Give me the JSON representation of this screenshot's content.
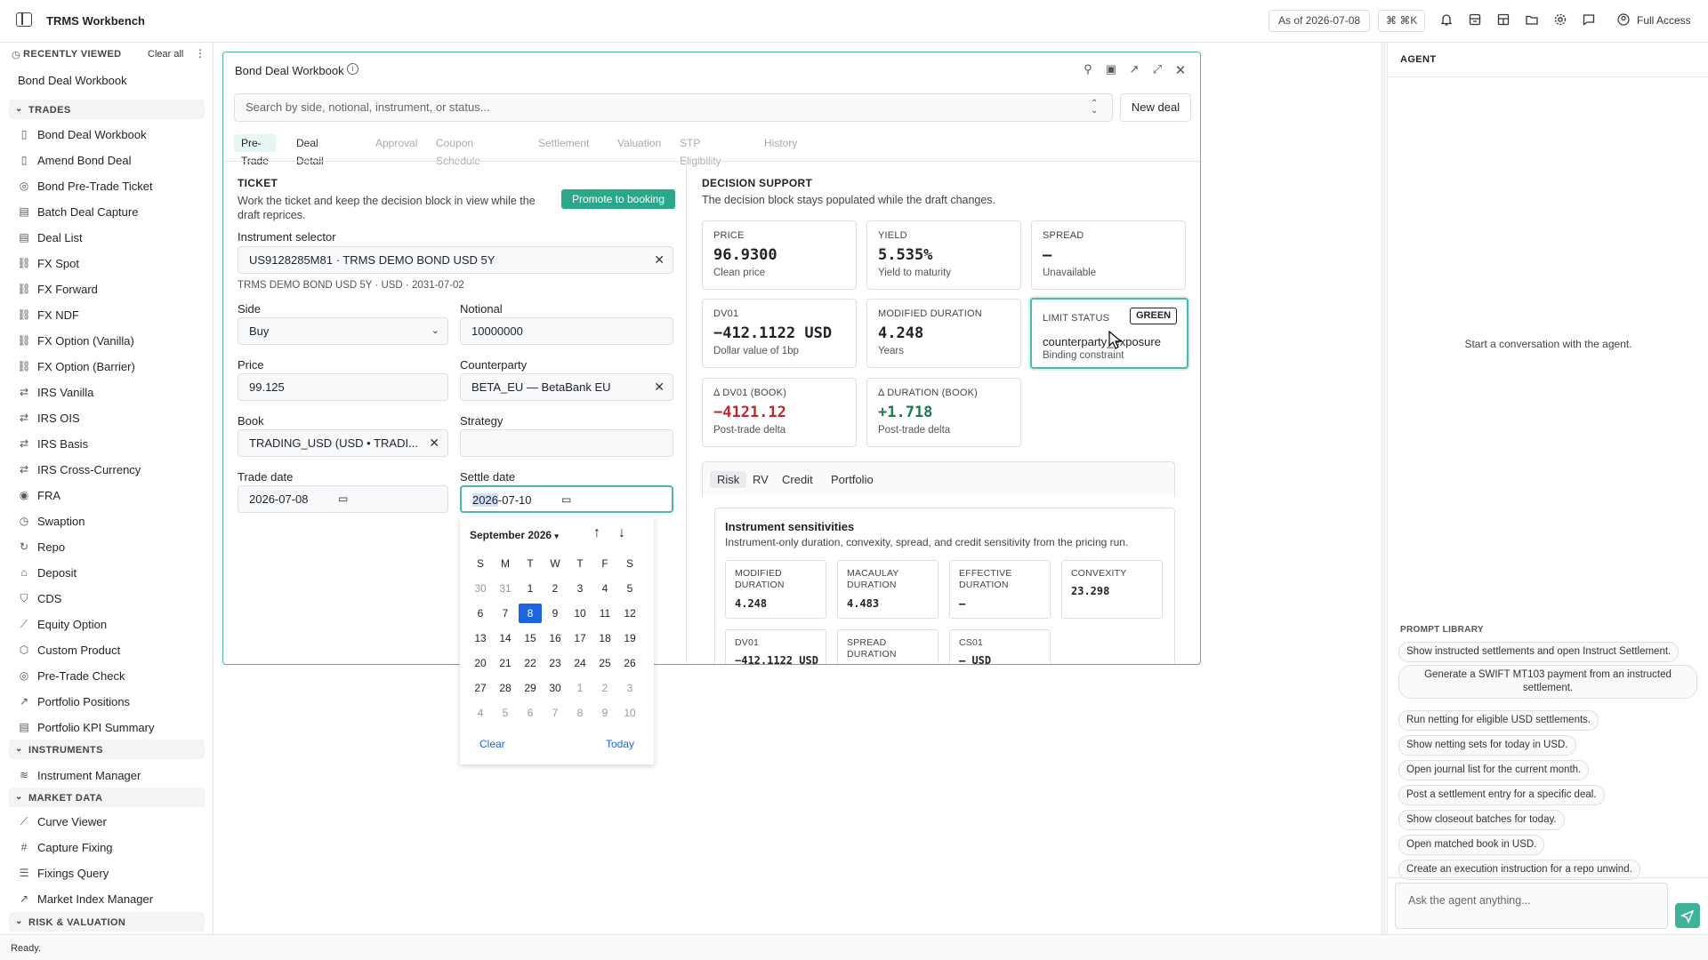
{
  "app": {
    "title": "TRMS Workbench",
    "asof": "As of 2026-07-08",
    "shortcut": "⌘ ⌘K",
    "full_access": "Full Access"
  },
  "nav": {
    "recent_header": "RECENTLY VIEWED",
    "clear_all": "Clear all",
    "recent_item": "Bond Deal Workbook",
    "trades_header": "TRADES",
    "trades": [
      "Bond Deal Workbook",
      "Amend Bond Deal",
      "Bond Pre-Trade Ticket",
      "Batch Deal Capture",
      "Deal List",
      "FX Spot",
      "FX Forward",
      "FX NDF",
      "FX Option (Vanilla)",
      "FX Option (Barrier)",
      "IRS Vanilla",
      "IRS OIS",
      "IRS Basis",
      "IRS Cross-Currency",
      "FRA",
      "Swaption",
      "Repo",
      "Deposit",
      "CDS",
      "Equity Option",
      "Custom Product",
      "Pre-Trade Check",
      "Portfolio Positions",
      "Portfolio KPI Summary"
    ],
    "instruments_header": "INSTRUMENTS",
    "instruments": [
      "Instrument Manager"
    ],
    "market_header": "MARKET DATA",
    "market": [
      "Curve Viewer",
      "Capture Fixing",
      "Fixings Query",
      "Market Index Manager"
    ],
    "risk_header": "RISK & VALUATION"
  },
  "status": "Ready.",
  "workbench": {
    "title": "Bond Deal Workbook",
    "search_placeholder": "Search by side, notional, instrument, or status...",
    "new_deal": "New deal",
    "tabs": [
      "Pre-Trade",
      "Deal Detail",
      "Approval",
      "Coupon Schedule",
      "Settlement",
      "Valuation",
      "STP Eligibility",
      "History"
    ],
    "ticket": {
      "header": "TICKET",
      "desc": "Work the ticket and keep the decision block in view while the draft reprices.",
      "promote": "Promote to booking",
      "instrument_label": "Instrument selector",
      "instrument_value": "US9128285M81 · TRMS DEMO BOND USD 5Y",
      "instrument_meta": "TRMS DEMO BOND USD 5Y · USD · 2031-07-02",
      "side_label": "Side",
      "side_value": "Buy",
      "notional_label": "Notional",
      "notional_value": "10000000",
      "price_label": "Price",
      "price_value": "99.125",
      "counterparty_label": "Counterparty",
      "counterparty_value": "BETA_EU — BetaBank EU",
      "book_label": "Book",
      "book_value": "TRADING_USD (USD • TRADI...",
      "strategy_label": "Strategy",
      "strategy_value": "",
      "trade_date_label": "Trade date",
      "trade_date_value": "2026-07-08",
      "settle_date_label": "Settle date",
      "settle_year": "2026",
      "settle_rest": "-07-10"
    },
    "decision": {
      "header": "DECISION SUPPORT",
      "desc": "The decision block stays populated while the draft changes.",
      "price": {
        "h": "PRICE",
        "v": "96.9300",
        "s": "Clean price"
      },
      "yield": {
        "h": "YIELD",
        "v": "5.535%",
        "s": "Yield to maturity"
      },
      "spread": {
        "h": "SPREAD",
        "v": "–",
        "s": "Unavailable"
      },
      "dv01": {
        "h": "DV01",
        "v": "−412.1122 USD",
        "s": "Dollar value of 1bp"
      },
      "mdur": {
        "h": "MODIFIED DURATION",
        "v": "4.248",
        "s": "Years"
      },
      "limit": {
        "h": "LIMIT STATUS",
        "badge": "GREEN",
        "v": "counterparty_exposure",
        "s": "Binding constraint"
      },
      "ddv01": {
        "h": "Δ DV01 (BOOK)",
        "v": "−4121.12",
        "s": "Post-trade delta"
      },
      "ddur": {
        "h": "Δ DURATION (BOOK)",
        "v": "+1.718",
        "s": "Post-trade delta"
      },
      "subtabs": [
        "Risk",
        "RV",
        "Credit",
        "Portfolio"
      ],
      "sens_title": "Instrument sensitivities",
      "sens_desc": "Instrument-only duration, convexity, spread, and credit sensitivity from the pricing run.",
      "sens": [
        {
          "h": "MODIFIED DURATION",
          "v": "4.248"
        },
        {
          "h": "MACAULAY DURATION",
          "v": "4.483"
        },
        {
          "h": "EFFECTIVE DURATION",
          "v": "–"
        },
        {
          "h": "CONVEXITY",
          "v": "23.298"
        },
        {
          "h": "DV01",
          "v": "−412.1122 USD"
        },
        {
          "h": "SPREAD DURATION",
          "v": ""
        },
        {
          "h": "CS01",
          "v": "– USD"
        }
      ]
    },
    "calendar": {
      "month": "September 2026",
      "weekdays": [
        "S",
        "M",
        "T",
        "W",
        "T",
        "F",
        "S"
      ],
      "days": [
        "30",
        "31",
        "1",
        "2",
        "3",
        "4",
        "5",
        "6",
        "7",
        "8",
        "9",
        "10",
        "11",
        "12",
        "13",
        "14",
        "15",
        "16",
        "17",
        "18",
        "19",
        "20",
        "21",
        "22",
        "23",
        "24",
        "25",
        "26",
        "27",
        "28",
        "29",
        "30",
        "1",
        "2",
        "3",
        "4",
        "5",
        "6",
        "7",
        "8",
        "9",
        "10"
      ],
      "clear": "Clear",
      "today": "Today"
    }
  },
  "agent": {
    "header": "AGENT",
    "empty": "Start a conversation with the agent.",
    "prompt_header": "PROMPT LIBRARY",
    "prompts": [
      "Show instructed settlements and open Instruct Settlement.",
      "Generate a SWIFT MT103 payment from an instructed settlement.",
      "Run netting for eligible USD settlements.",
      "Show netting sets for today in USD.",
      "Open journal list for the current month.",
      "Post a settlement entry for a specific deal.",
      "Show closeout batches for today.",
      "Open matched book in USD.",
      "Create an execution instruction for a repo unwind."
    ],
    "input_placeholder": "Ask the agent anything..."
  }
}
